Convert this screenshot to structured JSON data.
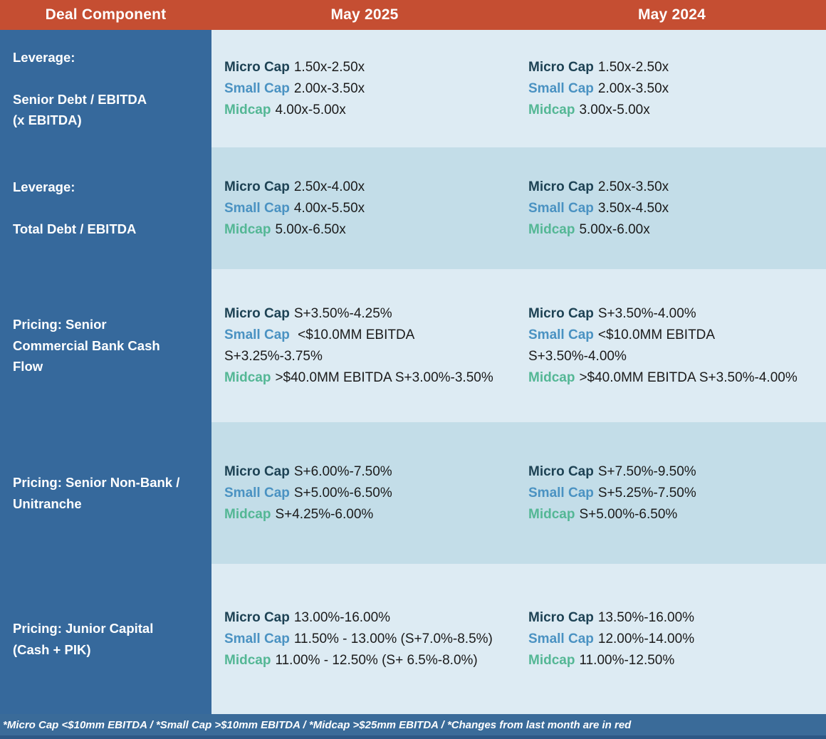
{
  "header": {
    "col_component": "Deal Component",
    "col_may2025": "May 2025",
    "col_may2024": "May 2024"
  },
  "colors": {
    "header_bg": "#C54E32",
    "label_column_bg": "#36699C",
    "row_light_bg": "#DDEBF3",
    "row_dark_bg": "#C3DDE8",
    "footer_bg": "#3A6B99",
    "footer_bottom_strip": "#2D5886",
    "micro_cap_label": "#1D4254",
    "small_cap_label": "#4A92C2",
    "midcap_label": "#54B795",
    "value_text": "#1B1B1B",
    "header_text": "#FFFFFF"
  },
  "rows": [
    {
      "component_lines": [
        "Leverage:",
        "",
        "Senior Debt / EBITDA",
        "(x EBITDA)"
      ],
      "may2025": [
        {
          "type": "micro",
          "label": "Micro Cap",
          "value": "1.50x-2.50x"
        },
        {
          "type": "small",
          "label": "Small Cap",
          "value": "2.00x-3.50x"
        },
        {
          "type": "mid",
          "label": "Midcap",
          "value": "4.00x-5.00x"
        }
      ],
      "may2024": [
        {
          "type": "micro",
          "label": "Micro Cap",
          "value": "1.50x-2.50x"
        },
        {
          "type": "small",
          "label": "Small Cap",
          "value": "2.00x-3.50x"
        },
        {
          "type": "mid",
          "label": "Midcap",
          "value": "3.00x-5.00x"
        }
      ]
    },
    {
      "component_lines": [
        "Leverage:",
        "",
        "Total Debt / EBITDA"
      ],
      "may2025": [
        {
          "type": "micro",
          "label": "Micro Cap",
          "value": "2.50x-4.00x"
        },
        {
          "type": "small",
          "label": "Small Cap",
          "value": "4.00x-5.50x"
        },
        {
          "type": "mid",
          "label": "Midcap",
          "value": "5.00x-6.50x"
        }
      ],
      "may2024": [
        {
          "type": "micro",
          "label": "Micro Cap",
          "value": "2.50x-3.50x"
        },
        {
          "type": "small",
          "label": "Small Cap",
          "value": "3.50x-4.50x"
        },
        {
          "type": "mid",
          "label": "Midcap",
          "value": "5.00x-6.00x"
        }
      ]
    },
    {
      "component_lines": [
        "Pricing: Senior",
        "Commercial Bank Cash",
        "Flow"
      ],
      "may2025": [
        {
          "type": "micro",
          "label": "Micro Cap",
          "value": "S+3.50%-4.25%"
        },
        {
          "type": "small",
          "label": "Small Cap",
          "value": " <$10.0MM EBITDA S+3.25%-3.75%"
        },
        {
          "type": "mid",
          "label": "Midcap",
          "value": ">$40.0MM EBITDA S+3.00%-3.50%"
        }
      ],
      "may2024": [
        {
          "type": "micro",
          "label": "Micro Cap",
          "value": "S+3.50%-4.00%"
        },
        {
          "type": "small",
          "label": "Small Cap",
          "value": "<$10.0MM EBITDA S+3.50%-4.00%"
        },
        {
          "type": "mid",
          "label": "Midcap",
          "value": ">$40.0MM EBITDA S+3.50%-4.00%"
        }
      ]
    },
    {
      "component_lines": [
        "Pricing: Senior Non-Bank /",
        "Unitranche"
      ],
      "may2025": [
        {
          "type": "micro",
          "label": "Micro Cap",
          "value": "S+6.00%-7.50%"
        },
        {
          "type": "small",
          "label": "Small Cap",
          "value": "S+5.00%-6.50%"
        },
        {
          "type": "mid",
          "label": "Midcap",
          "value": "S+4.25%-6.00%"
        }
      ],
      "may2024": [
        {
          "type": "micro",
          "label": "Micro Cap",
          "value": "S+7.50%-9.50%"
        },
        {
          "type": "small",
          "label": "Small Cap",
          "value": "S+5.25%-7.50%"
        },
        {
          "type": "mid",
          "label": "Midcap",
          "value": "S+5.00%-6.50%"
        }
      ]
    },
    {
      "component_lines": [
        "Pricing: Junior Capital",
        "(Cash + PIK)"
      ],
      "may2025": [
        {
          "type": "micro",
          "label": "Micro Cap",
          "value": "13.00%-16.00%"
        },
        {
          "type": "small",
          "label": "Small Cap",
          "value": "11.50% - 13.00% (S+7.0%-8.5%)"
        },
        {
          "type": "mid",
          "label": "Midcap",
          "value": "11.00% - 12.50% (S+ 6.5%-8.0%)"
        }
      ],
      "may2024": [
        {
          "type": "micro",
          "label": "Micro Cap",
          "value": "13.50%-16.00%"
        },
        {
          "type": "small",
          "label": "Small Cap",
          "value": "12.00%-14.00%"
        },
        {
          "type": "mid",
          "label": "Midcap",
          "value": "11.00%-12.50%"
        }
      ]
    }
  ],
  "footer": {
    "note": "*Micro Cap <$10mm EBITDA / *Small Cap >$10mm EBITDA / *Midcap >$25mm EBITDA / *Changes from last month are in red"
  },
  "chart_data": {
    "type": "table",
    "columns": [
      "Deal Component",
      "May 2025",
      "May 2024"
    ],
    "rows": [
      [
        "Leverage: Senior Debt / EBITDA (x EBITDA)",
        "Micro Cap 1.50x-2.50x | Small Cap 2.00x-3.50x | Midcap 4.00x-5.00x",
        "Micro Cap 1.50x-2.50x | Small Cap 2.00x-3.50x | Midcap 3.00x-5.00x"
      ],
      [
        "Leverage: Total Debt / EBITDA",
        "Micro Cap 2.50x-4.00x | Small Cap 4.00x-5.50x | Midcap 5.00x-6.50x",
        "Micro Cap 2.50x-3.50x | Small Cap 3.50x-4.50x | Midcap 5.00x-6.00x"
      ],
      [
        "Pricing: Senior Commercial Bank Cash Flow",
        "Micro Cap S+3.50%-4.25% | Small Cap <$10.0MM EBITDA S+3.25%-3.75% | Midcap >$40.0MM EBITDA S+3.00%-3.50%",
        "Micro Cap S+3.50%-4.00% | Small Cap <$10.0MM EBITDA S+3.50%-4.00% | Midcap >$40.0MM EBITDA S+3.50%-4.00%"
      ],
      [
        "Pricing: Senior Non-Bank / Unitranche",
        "Micro Cap S+6.00%-7.50% | Small Cap S+5.00%-6.50% | Midcap S+4.25%-6.00%",
        "Micro Cap S+7.50%-9.50% | Small Cap S+5.25%-7.50% | Midcap S+5.00%-6.50%"
      ],
      [
        "Pricing: Junior Capital (Cash + PIK)",
        "Micro Cap 13.00%-16.00% | Small Cap 11.50% - 13.00% (S+7.0%-8.5%) | Midcap 11.00% - 12.50% (S+ 6.5%-8.0%)",
        "Micro Cap 13.50%-16.00% | Small Cap 12.00%-14.00% | Midcap 11.00%-12.50%"
      ]
    ],
    "footnote": "*Micro Cap <$10mm EBITDA / *Small Cap >$10mm EBITDA / *Midcap >$25mm EBITDA / *Changes from last month are in red"
  }
}
